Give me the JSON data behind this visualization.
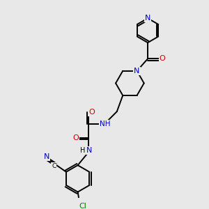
{
  "background_color": "#e8e8e8",
  "figsize": [
    3.0,
    3.0
  ],
  "dpi": 100,
  "C_color": "#000000",
  "N_color": "#0000cc",
  "O_color": "#cc0000",
  "Cl_color": "#008000",
  "bond_color": "#000000",
  "bond_lw": 1.4,
  "font_size": 7.5,
  "xlim": [
    0,
    10
  ],
  "ylim": [
    0,
    10
  ]
}
